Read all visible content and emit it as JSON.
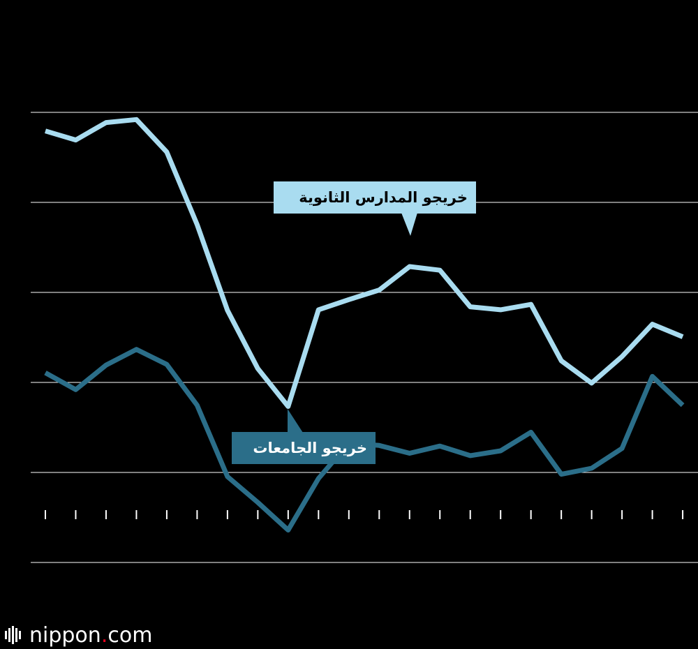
{
  "chart_data": {
    "type": "line",
    "title": "",
    "xlabel": "",
    "ylabel": "",
    "ylim": [
      0,
      100
    ],
    "y_gridlines": [
      15,
      30,
      45,
      60,
      75,
      90
    ],
    "x": [
      1,
      2,
      3,
      4,
      5,
      6,
      7,
      8,
      9,
      10,
      11,
      12,
      13,
      14,
      15,
      16,
      17,
      18,
      19,
      20,
      21,
      22
    ],
    "series": [
      {
        "name": "خريجو المدارس الثانوية",
        "color": "#a9dcf0",
        "values": [
          86.9,
          85.4,
          88.3,
          88.8,
          83.4,
          71.3,
          57.0,
          47.3,
          41.0,
          57.1,
          58.8,
          60.4,
          64.3,
          63.7,
          57.6,
          57.1,
          58.0,
          48.6,
          44.9,
          49.3,
          54.7,
          52.6
        ]
      },
      {
        "name": "خريجو الجامعات",
        "color": "#2b6e89",
        "values": [
          46.6,
          43.8,
          47.9,
          50.5,
          48.0,
          41.2,
          29.3,
          25.0,
          20.4,
          29.0,
          34.9,
          34.5,
          33.2,
          34.4,
          32.8,
          33.6,
          36.7,
          29.7,
          30.7,
          34.0,
          46.0,
          41.2
        ]
      }
    ],
    "annotations": {
      "high_school_label": "خريجو المدارس الثانوية",
      "university_label": "خريجو الجامعات"
    }
  },
  "brand": {
    "name": "nippon",
    "dot": ".",
    "suffix": "com",
    "dot_color": "#e8001d",
    "icon": "nippon-logo-icon"
  },
  "colors": {
    "background": "#000000",
    "grid": "#ffffff",
    "high_school": "#a9dcf0",
    "university": "#2b6e89"
  }
}
